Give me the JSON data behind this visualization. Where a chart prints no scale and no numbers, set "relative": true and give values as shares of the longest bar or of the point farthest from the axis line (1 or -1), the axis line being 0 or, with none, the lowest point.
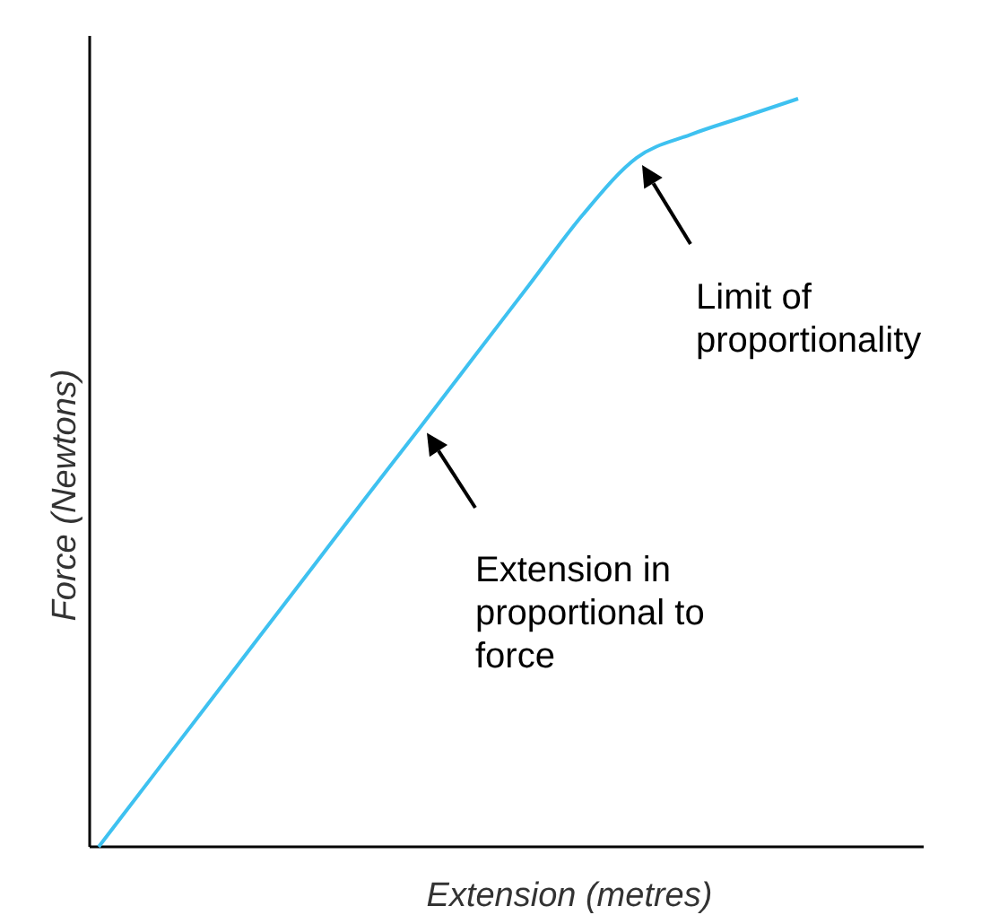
{
  "chart_data": {
    "type": "line",
    "relative": true,
    "xlabel": "Extension (metres)",
    "ylabel": "Force (Newtons)",
    "categories": [
      null,
      null,
      null,
      null,
      null,
      null,
      null,
      null,
      null,
      null,
      null,
      null,
      null,
      null
    ],
    "series": [
      {
        "color": "#3ec1f0",
        "values": [
          0,
          0.094,
          0.188,
          0.282,
          0.376,
          0.47,
          0.563,
          0.657,
          0.751,
          0.845,
          0.921,
          0.952,
          0.976,
          1
        ]
      }
    ],
    "annotations": [
      "Limit of\nproportionality",
      "Extension in\nproportional to\nforce"
    ],
    "marker": "none",
    "line_style": "solid"
  }
}
